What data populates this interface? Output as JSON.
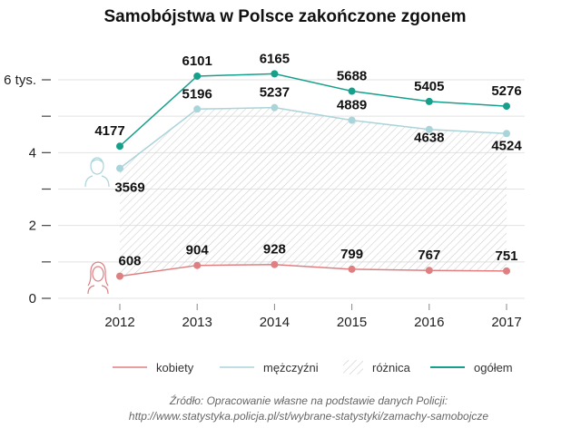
{
  "chart_data": {
    "type": "line",
    "title": "Samobójstwa w Polsce zakończone zgonem",
    "categories": [
      "2012",
      "2013",
      "2014",
      "2015",
      "2016",
      "2017"
    ],
    "series": [
      {
        "name": "kobiety",
        "color": "#e07f82",
        "values": [
          608,
          904,
          928,
          799,
          767,
          751
        ]
      },
      {
        "name": "mężczyźni",
        "color": "#a9d4da",
        "values": [
          3569,
          5196,
          5237,
          4889,
          4638,
          4524
        ]
      },
      {
        "name": "ogółem",
        "color": "#16a08c",
        "values": [
          4177,
          6101,
          6165,
          5688,
          5405,
          5276
        ]
      }
    ],
    "difference_label": "różnica",
    "y_ticks": [
      {
        "value": 0,
        "label": "0"
      },
      {
        "value": 1000,
        "label": ""
      },
      {
        "value": 2000,
        "label": "2"
      },
      {
        "value": 3000,
        "label": ""
      },
      {
        "value": 4000,
        "label": "4"
      },
      {
        "value": 5000,
        "label": ""
      },
      {
        "value": 6000,
        "label": "6 tys."
      }
    ],
    "ylim": [
      0,
      6000
    ],
    "grid": true,
    "legend_position": "bottom",
    "icons": [
      "man-icon",
      "woman-icon"
    ]
  },
  "source": {
    "line1": "Źródło: Opracowanie własne na podstawie danych Policji:",
    "line2": "http://www.statystyka.policja.pl/st/wybrane-statystyki/zamachy-samobojcze"
  }
}
